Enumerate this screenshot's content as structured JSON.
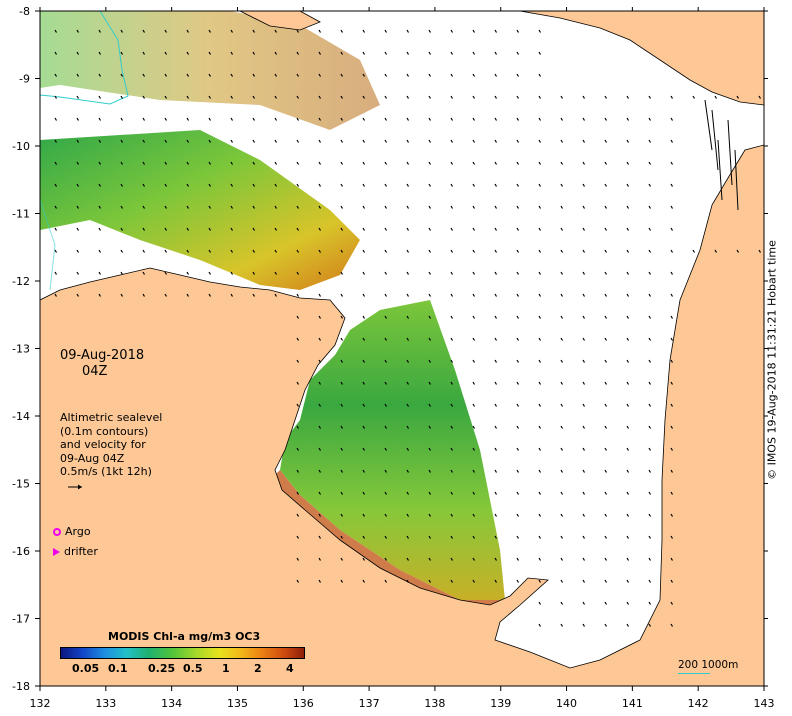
{
  "map": {
    "date": "09-Aug-2018",
    "hour": "04Z",
    "info_lines": [
      "Altimetric sealevel",
      "(0.1m contours)",
      "and velocity for",
      "09-Aug 04Z",
      "0.5m/s (1kt 12h)"
    ],
    "legend": {
      "argo_label": "Argo",
      "drifter_label": "drifter",
      "marker_color": "#ee00ee"
    },
    "colorbar": {
      "title": "MODIS Chl-a mg/m3 OC3",
      "labels": [
        "0.05",
        "0.1",
        "0.25",
        "0.5",
        "1",
        "2",
        "4"
      ]
    },
    "axes": {
      "lon_ticks": [
        "132",
        "133",
        "134",
        "135",
        "136",
        "137",
        "138",
        "139",
        "140",
        "141",
        "142",
        "143"
      ],
      "lat_ticks": [
        "-8",
        "-9",
        "-10",
        "-11",
        "-12",
        "-13",
        "-14",
        "-15",
        "-16",
        "-17",
        "-18"
      ]
    },
    "credit": "© IMOS 19-Aug-2018 11:31:21 Hobart time",
    "scale_label": "200  1000m",
    "colors": {
      "land": "#fdc896",
      "ocean": "#ffffff",
      "bathymetry_contour": "#33cccc",
      "arrow": "#000000"
    }
  }
}
